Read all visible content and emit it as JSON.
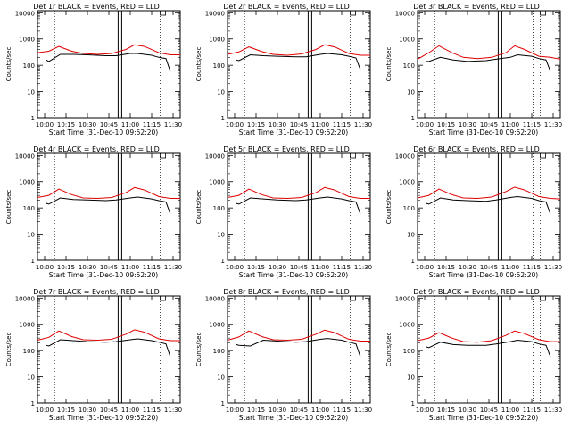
{
  "figure": {
    "colors": {
      "events": "#000000",
      "lld": "#e00000",
      "axes": "#000000"
    }
  },
  "chart_data": [
    {
      "type": "line",
      "title": "Det 1r BLACK = Events, RED = LLD",
      "xlabel": "Start Time (31-Dec-10 09:52:20)",
      "ylabel": "Counts/sec",
      "x_ticks": [
        "10:00",
        "10:15",
        "10:30",
        "10:45",
        "11:00",
        "11:15",
        "11:30"
      ],
      "y_ticks": [
        "1",
        "10",
        "100",
        "1000",
        "10000"
      ],
      "ylim": [
        1,
        12000
      ],
      "y_scale": "log",
      "grid": false,
      "series": [
        {
          "name": "Events",
          "x": [
            0.06,
            0.08,
            0.16,
            0.25,
            0.35,
            0.48,
            0.55,
            0.65,
            0.7,
            0.8,
            0.85,
            0.9,
            0.93
          ],
          "values": [
            160,
            140,
            260,
            260,
            250,
            230,
            230,
            280,
            280,
            240,
            200,
            180,
            60
          ]
        },
        {
          "name": "LLD",
          "x": [
            0.0,
            0.08,
            0.15,
            0.24,
            0.32,
            0.42,
            0.52,
            0.62,
            0.68,
            0.75,
            0.85,
            0.93,
            1.0
          ],
          "values": [
            300,
            340,
            520,
            340,
            280,
            260,
            280,
            400,
            600,
            520,
            300,
            250,
            250
          ]
        }
      ]
    },
    {
      "type": "line",
      "title": "Det 2r BLACK = Events, RED = LLD",
      "xlabel": "Start Time (31-Dec-10 09:52:20)",
      "ylabel": "Counts/sec",
      "x_ticks": [
        "10:00",
        "10:15",
        "10:30",
        "10:45",
        "11:00",
        "11:15",
        "11:30"
      ],
      "y_ticks": [
        "1",
        "10",
        "100",
        "1000",
        "10000"
      ],
      "ylim": [
        1,
        12000
      ],
      "y_scale": "log",
      "grid": false,
      "series": [
        {
          "name": "Events",
          "x": [
            0.06,
            0.08,
            0.16,
            0.25,
            0.35,
            0.48,
            0.55,
            0.65,
            0.7,
            0.8,
            0.85,
            0.9,
            0.93
          ],
          "values": [
            160,
            150,
            250,
            230,
            220,
            210,
            210,
            260,
            280,
            250,
            220,
            190,
            70
          ]
        },
        {
          "name": "LLD",
          "x": [
            0.0,
            0.08,
            0.15,
            0.24,
            0.32,
            0.42,
            0.52,
            0.62,
            0.68,
            0.75,
            0.85,
            0.93,
            1.0
          ],
          "values": [
            260,
            320,
            500,
            330,
            260,
            240,
            270,
            400,
            600,
            500,
            280,
            240,
            240
          ]
        }
      ]
    },
    {
      "type": "line",
      "title": "Det 3r BLACK = Events, RED = LLD",
      "xlabel": "Start Time (31-Dec-10 09:52:20)",
      "ylabel": "Counts/sec",
      "x_ticks": [
        "10:00",
        "10:15",
        "10:30",
        "10:45",
        "11:00",
        "11:15",
        "11:30"
      ],
      "y_ticks": [
        "1",
        "10",
        "100",
        "1000",
        "10000"
      ],
      "ylim": [
        1,
        12000
      ],
      "y_scale": "log",
      "grid": false,
      "series": [
        {
          "name": "Events",
          "x": [
            0.06,
            0.08,
            0.16,
            0.25,
            0.35,
            0.48,
            0.55,
            0.65,
            0.7,
            0.8,
            0.85,
            0.9,
            0.93
          ],
          "values": [
            140,
            140,
            200,
            160,
            140,
            150,
            170,
            200,
            250,
            220,
            180,
            160,
            60
          ]
        },
        {
          "name": "LLD",
          "x": [
            0.0,
            0.08,
            0.15,
            0.24,
            0.32,
            0.42,
            0.52,
            0.62,
            0.68,
            0.75,
            0.85,
            0.93,
            1.0
          ],
          "values": [
            170,
            300,
            550,
            300,
            200,
            180,
            200,
            300,
            550,
            400,
            220,
            200,
            170
          ]
        }
      ]
    },
    {
      "type": "line",
      "title": "Det 4r BLACK = Events, RED = LLD",
      "xlabel": "Start Time (31-Dec-10 09:52:20)",
      "ylabel": "Counts/sec",
      "x_ticks": [
        "10:00",
        "10:15",
        "10:30",
        "10:45",
        "11:00",
        "11:15",
        "11:30"
      ],
      "y_ticks": [
        "1",
        "10",
        "100",
        "1000",
        "10000"
      ],
      "ylim": [
        1,
        12000
      ],
      "y_scale": "log",
      "grid": false,
      "series": [
        {
          "name": "Events",
          "x": [
            0.06,
            0.08,
            0.16,
            0.25,
            0.35,
            0.48,
            0.55,
            0.65,
            0.7,
            0.8,
            0.85,
            0.9,
            0.93
          ],
          "values": [
            150,
            140,
            240,
            210,
            200,
            190,
            200,
            240,
            260,
            220,
            190,
            170,
            60
          ]
        },
        {
          "name": "LLD",
          "x": [
            0.0,
            0.08,
            0.15,
            0.24,
            0.32,
            0.42,
            0.52,
            0.62,
            0.68,
            0.75,
            0.85,
            0.93,
            1.0
          ],
          "values": [
            250,
            300,
            520,
            320,
            240,
            230,
            250,
            380,
            600,
            480,
            270,
            230,
            230
          ]
        }
      ]
    },
    {
      "type": "line",
      "title": "Det 5r BLACK = Events, RED = LLD",
      "xlabel": "Start Time (31-Dec-10 09:52:20)",
      "ylabel": "Counts/sec",
      "x_ticks": [
        "10:00",
        "10:15",
        "10:30",
        "10:45",
        "11:00",
        "11:15",
        "11:30"
      ],
      "y_ticks": [
        "1",
        "10",
        "100",
        "1000",
        "10000"
      ],
      "ylim": [
        1,
        12000
      ],
      "y_scale": "log",
      "grid": false,
      "series": [
        {
          "name": "Events",
          "x": [
            0.06,
            0.08,
            0.16,
            0.25,
            0.35,
            0.48,
            0.55,
            0.65,
            0.7,
            0.8,
            0.85,
            0.9,
            0.93
          ],
          "values": [
            150,
            140,
            240,
            220,
            200,
            190,
            200,
            240,
            260,
            220,
            190,
            170,
            60
          ]
        },
        {
          "name": "LLD",
          "x": [
            0.0,
            0.08,
            0.15,
            0.24,
            0.32,
            0.42,
            0.52,
            0.62,
            0.68,
            0.75,
            0.85,
            0.93,
            1.0
          ],
          "values": [
            250,
            300,
            520,
            320,
            240,
            230,
            250,
            380,
            600,
            480,
            270,
            230,
            230
          ]
        }
      ]
    },
    {
      "type": "line",
      "title": "Det 6r BLACK = Events, RED = LLD",
      "xlabel": "Start Time (31-Dec-10 09:52:20)",
      "ylabel": "Counts/sec",
      "x_ticks": [
        "10:00",
        "10:15",
        "10:30",
        "10:45",
        "11:00",
        "11:15",
        "11:30"
      ],
      "y_ticks": [
        "1",
        "10",
        "100",
        "1000",
        "10000"
      ],
      "ylim": [
        1,
        12000
      ],
      "y_scale": "log",
      "grid": false,
      "series": [
        {
          "name": "Events",
          "x": [
            0.06,
            0.08,
            0.16,
            0.25,
            0.35,
            0.48,
            0.55,
            0.65,
            0.7,
            0.8,
            0.85,
            0.9,
            0.93
          ],
          "values": [
            150,
            140,
            240,
            200,
            190,
            180,
            200,
            250,
            270,
            230,
            190,
            170,
            60
          ]
        },
        {
          "name": "LLD",
          "x": [
            0.0,
            0.08,
            0.15,
            0.24,
            0.32,
            0.42,
            0.52,
            0.62,
            0.68,
            0.75,
            0.85,
            0.93,
            1.0
          ],
          "values": [
            240,
            300,
            520,
            320,
            240,
            230,
            260,
            420,
            620,
            480,
            270,
            230,
            220
          ]
        }
      ]
    },
    {
      "type": "line",
      "title": "Det 7r BLACK = Events, RED = LLD",
      "xlabel": "Start Time (31-Dec-10 09:52:20)",
      "ylabel": "Counts/sec",
      "x_ticks": [
        "10:00",
        "10:15",
        "10:30",
        "10:45",
        "11:00",
        "11:15",
        "11:30"
      ],
      "y_ticks": [
        "1",
        "10",
        "100",
        "1000",
        "10000"
      ],
      "ylim": [
        1,
        12000
      ],
      "y_scale": "log",
      "grid": false,
      "series": [
        {
          "name": "Events",
          "x": [
            0.06,
            0.08,
            0.16,
            0.25,
            0.35,
            0.48,
            0.55,
            0.65,
            0.7,
            0.8,
            0.85,
            0.9,
            0.93
          ],
          "values": [
            160,
            150,
            260,
            240,
            220,
            210,
            220,
            260,
            280,
            240,
            210,
            180,
            60
          ]
        },
        {
          "name": "LLD",
          "x": [
            0.0,
            0.08,
            0.15,
            0.24,
            0.32,
            0.42,
            0.52,
            0.62,
            0.68,
            0.75,
            0.85,
            0.93,
            1.0
          ],
          "values": [
            250,
            320,
            560,
            340,
            260,
            250,
            270,
            420,
            620,
            500,
            280,
            240,
            240
          ]
        }
      ]
    },
    {
      "type": "line",
      "title": "Det 8r BLACK = Events, RED = LLD",
      "xlabel": "Start Time (31-Dec-10 09:52:20)",
      "ylabel": "Counts/sec",
      "x_ticks": [
        "10:00",
        "10:15",
        "10:30",
        "10:45",
        "11:00",
        "11:15",
        "11:30"
      ],
      "y_ticks": [
        "1",
        "10",
        "100",
        "1000",
        "10000"
      ],
      "ylim": [
        1,
        12000
      ],
      "y_scale": "log",
      "grid": false,
      "series": [
        {
          "name": "Events",
          "x": [
            0.06,
            0.08,
            0.16,
            0.25,
            0.35,
            0.48,
            0.55,
            0.65,
            0.7,
            0.8,
            0.85,
            0.9,
            0.93
          ],
          "values": [
            170,
            160,
            150,
            250,
            230,
            210,
            220,
            270,
            290,
            250,
            210,
            180,
            60
          ]
        },
        {
          "name": "LLD",
          "x": [
            0.0,
            0.08,
            0.15,
            0.24,
            0.32,
            0.42,
            0.52,
            0.62,
            0.68,
            0.75,
            0.85,
            0.93,
            1.0
          ],
          "values": [
            250,
            330,
            560,
            340,
            260,
            250,
            270,
            420,
            600,
            480,
            270,
            230,
            230
          ]
        }
      ]
    },
    {
      "type": "line",
      "title": "Det 9r BLACK = Events, RED = LLD",
      "xlabel": "Start Time (31-Dec-10 09:52:20)",
      "ylabel": "Counts/sec",
      "x_ticks": [
        "10:00",
        "10:15",
        "10:30",
        "10:45",
        "11:00",
        "11:15",
        "11:30"
      ],
      "y_ticks": [
        "1",
        "10",
        "100",
        "1000",
        "10000"
      ],
      "ylim": [
        1,
        12000
      ],
      "y_scale": "log",
      "grid": false,
      "series": [
        {
          "name": "Events",
          "x": [
            0.06,
            0.08,
            0.16,
            0.25,
            0.35,
            0.48,
            0.55,
            0.65,
            0.7,
            0.8,
            0.85,
            0.9,
            0.93
          ],
          "values": [
            140,
            130,
            210,
            170,
            160,
            160,
            180,
            220,
            250,
            220,
            180,
            160,
            60
          ]
        },
        {
          "name": "LLD",
          "x": [
            0.0,
            0.08,
            0.15,
            0.24,
            0.32,
            0.42,
            0.52,
            0.62,
            0.68,
            0.75,
            0.85,
            0.93,
            1.0
          ],
          "values": [
            240,
            300,
            480,
            300,
            220,
            210,
            240,
            380,
            560,
            440,
            260,
            220,
            220
          ]
        }
      ]
    }
  ]
}
